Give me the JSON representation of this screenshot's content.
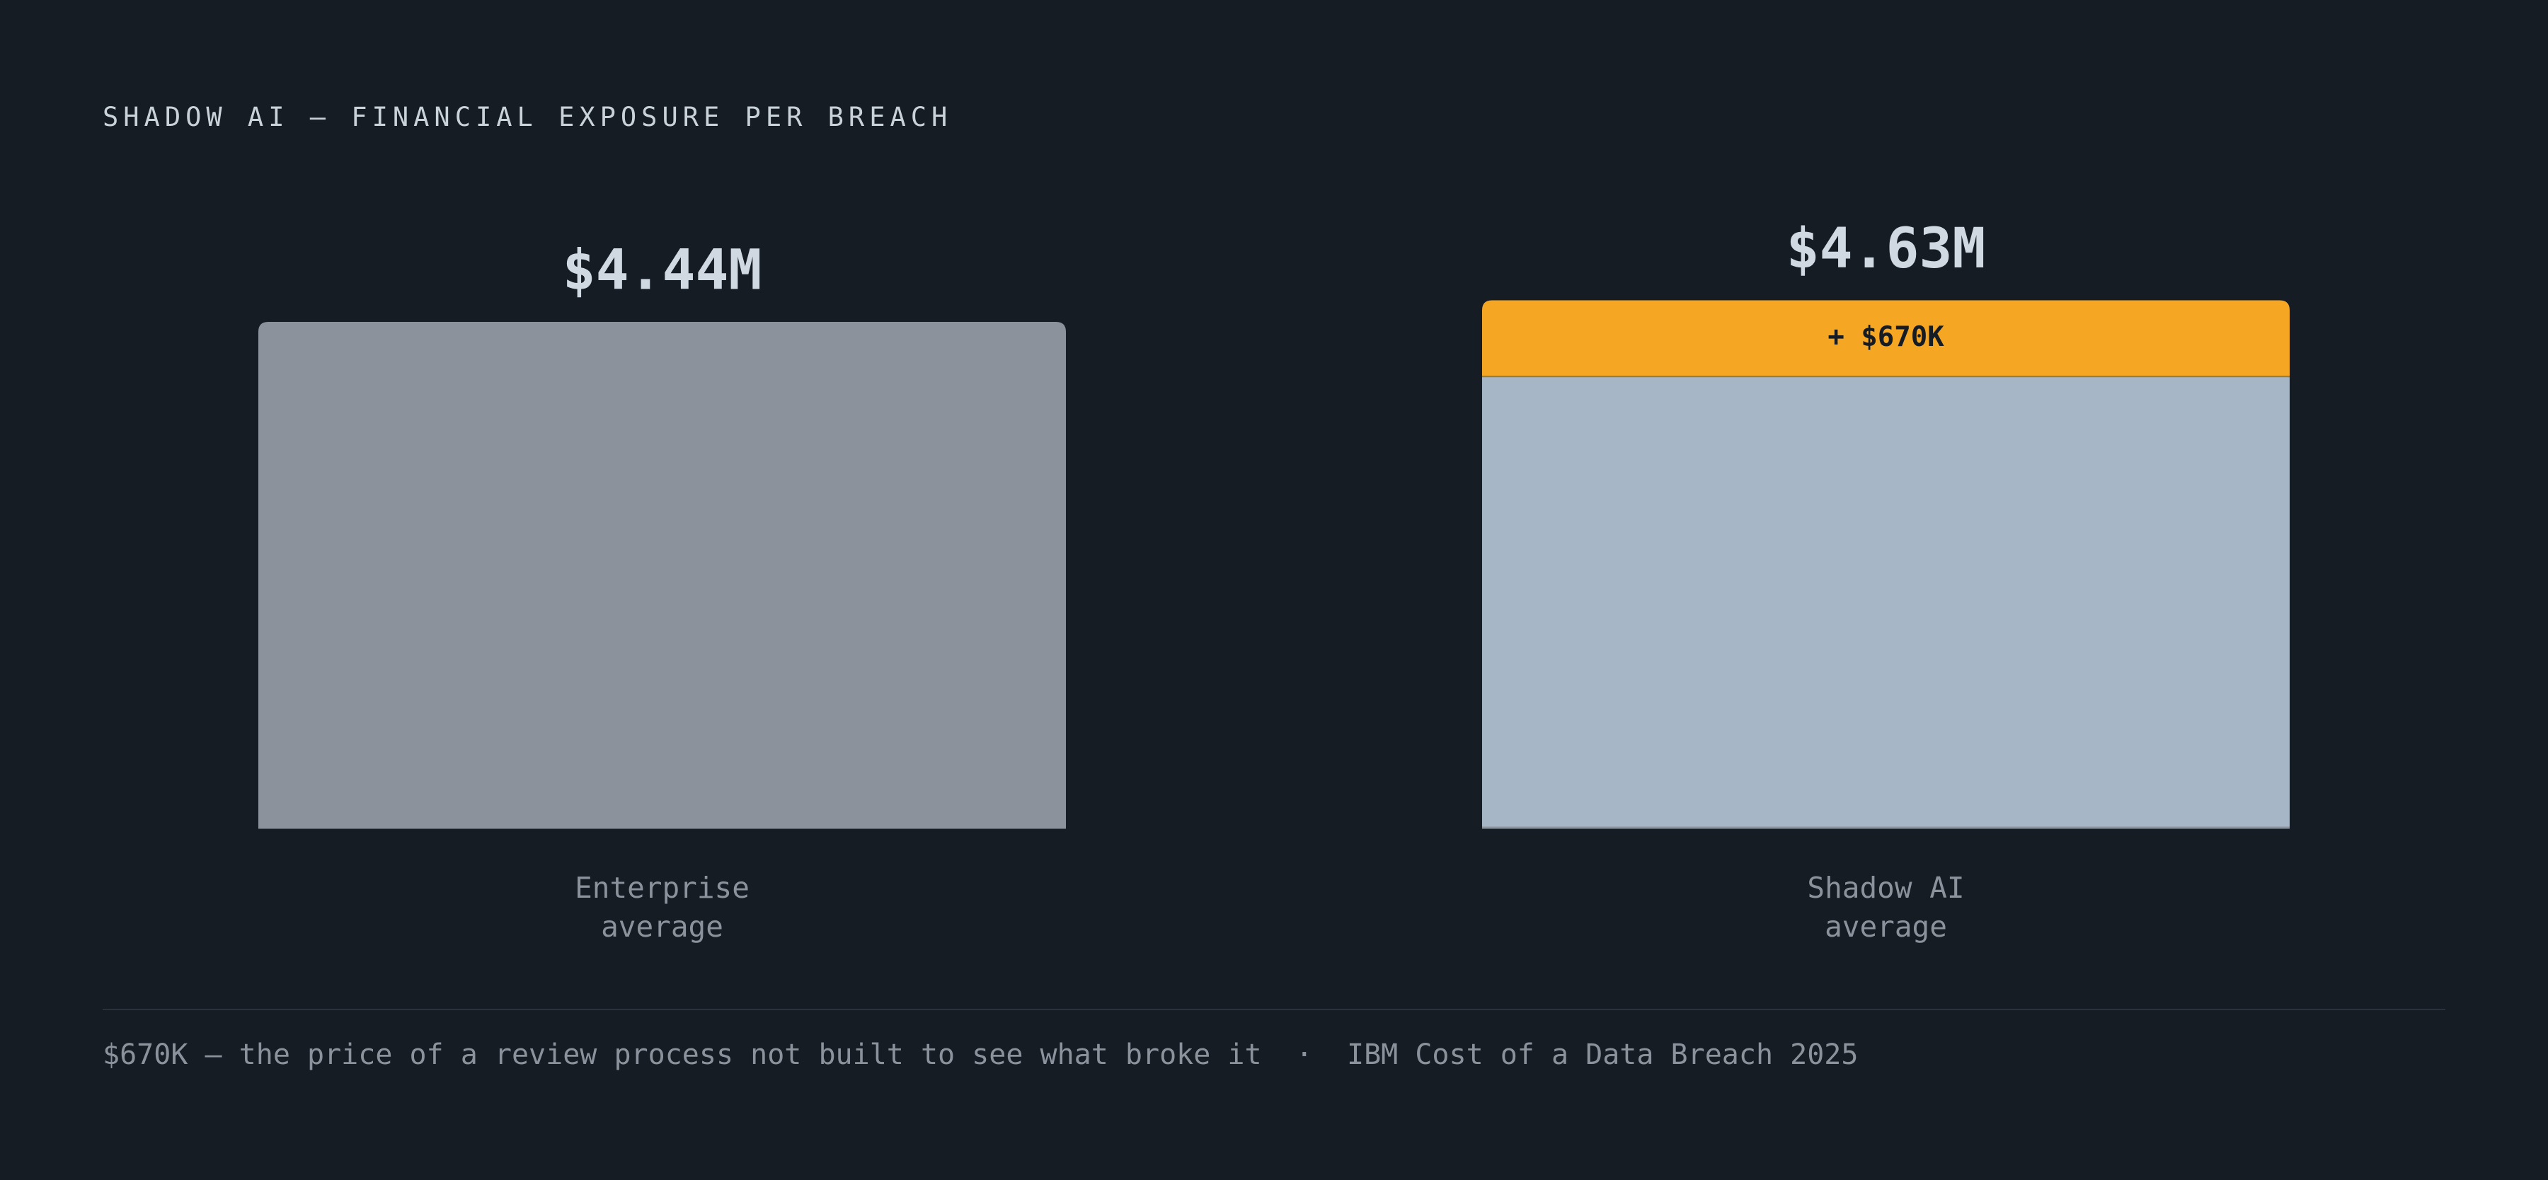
{
  "chart_data": {
    "type": "stacked_bar",
    "title": "SHADOW AI — FINANCIAL EXPOSURE PER BREACH",
    "categories": [
      "Enterprise average",
      "Shadow AI average"
    ],
    "series": [
      {
        "values": [
          4.44,
          3.96
        ],
        "colors": [
          "#8b929b",
          "#a7b6c6"
        ]
      },
      {
        "values": [
          null,
          0.67
        ],
        "value_labels": [
          null,
          "+ $670K"
        ],
        "color": "#f5a623"
      }
    ],
    "total_labels": [
      {
        "value": 4.44,
        "label": "$4.44M"
      },
      {
        "value": 4.63,
        "label": "$4.63M"
      }
    ],
    "ylim": [
      0,
      5
    ],
    "footer": "$670K — the price of a review process not built to see what broke it  ·  IBM Cost of a Data Breach 2025"
  }
}
